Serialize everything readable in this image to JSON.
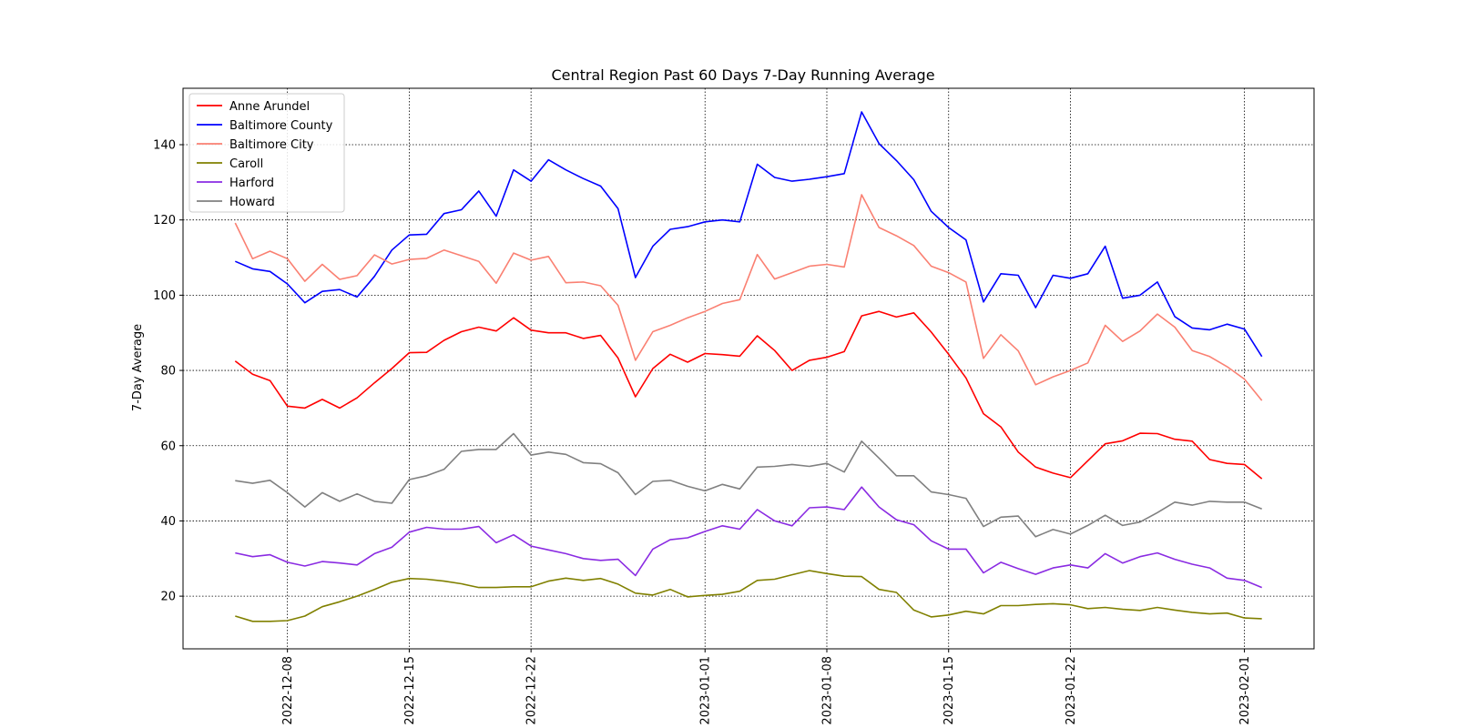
{
  "chart_data": {
    "type": "line",
    "title": "Central Region Past 60 Days 7-Day Running Average",
    "xlabel": "",
    "ylabel": "7-Day Average",
    "grid": true,
    "legend_position": "top-left",
    "x_start": "2022-12-05",
    "x_step_days": 1,
    "x_ticks": [
      "2022-12-08",
      "2022-12-15",
      "2022-12-22",
      "2023-01-01",
      "2023-01-08",
      "2023-01-15",
      "2023-01-22",
      "2023-02-01"
    ],
    "xlim": [
      "2022-12-02",
      "2023-02-05"
    ],
    "y_ticks": [
      20,
      40,
      60,
      80,
      100,
      120,
      140
    ],
    "ylim": [
      6,
      155
    ],
    "series": [
      {
        "name": "Anne Arundel",
        "color": "#ff0000",
        "values": [
          82.5,
          79,
          77.3,
          70.5,
          70,
          72.3,
          70,
          72.7,
          76.7,
          80.5,
          84.7,
          84.8,
          88,
          90.3,
          91.5,
          90.5,
          94,
          90.7,
          90,
          90,
          88.5,
          89.3,
          83.3,
          73,
          80.5,
          84.3,
          82.2,
          84.5,
          84.2,
          83.8,
          89.2,
          85.3,
          80,
          82.7,
          83.5,
          85,
          94.5,
          95.7,
          94.2,
          95.3,
          90.2,
          84.3,
          78,
          68.5,
          65,
          58.3,
          54.3,
          52.7,
          51.5,
          56,
          60.5,
          61.3,
          63.3,
          63.2,
          61.7,
          61.2,
          56.3,
          55.3,
          55,
          51.2
        ]
      },
      {
        "name": "Baltimore County",
        "color": "#0000ff",
        "values": [
          109,
          107,
          106.3,
          103,
          98,
          101,
          101.5,
          99.5,
          105,
          112,
          116,
          116.2,
          121.7,
          122.7,
          127.7,
          121,
          133.3,
          130.3,
          136,
          133.3,
          131,
          129,
          123,
          104.7,
          113,
          117.5,
          118.2,
          119.5,
          120,
          119.5,
          134.8,
          131.3,
          130.3,
          130.8,
          131.5,
          132.3,
          148.7,
          140.3,
          135.8,
          130.7,
          122.3,
          118,
          114.7,
          98.2,
          105.7,
          105.3,
          96.7,
          105.3,
          104.5,
          105.7,
          113,
          99.2,
          100,
          103.5,
          94.3,
          91.3,
          90.8,
          92.3,
          91,
          83.7
        ]
      },
      {
        "name": "Baltimore City",
        "color": "#fa8072",
        "values": [
          119.2,
          109.7,
          111.7,
          109.7,
          103.7,
          108.2,
          104.2,
          105.2,
          110.7,
          108.3,
          109.5,
          109.8,
          112,
          110.5,
          109,
          103.2,
          111.2,
          109.3,
          110.3,
          103.3,
          103.5,
          102.5,
          97.3,
          82.7,
          90.3,
          92,
          94,
          95.7,
          97.8,
          98.8,
          110.8,
          104.3,
          106,
          107.7,
          108.2,
          107.5,
          126.7,
          118,
          115.8,
          113.2,
          107.7,
          106,
          103.5,
          83.2,
          89.5,
          85.2,
          76.2,
          78.3,
          80,
          82,
          92,
          87.7,
          90.5,
          95,
          91.5,
          85.3,
          83.7,
          81,
          77.7,
          72
        ]
      },
      {
        "name": "Caroll",
        "color": "#808000",
        "values": [
          14.7,
          13.3,
          13.3,
          13.5,
          14.7,
          17.2,
          18.5,
          20,
          21.8,
          23.7,
          24.7,
          24.5,
          24,
          23.3,
          22.3,
          22.3,
          22.5,
          22.5,
          24,
          24.8,
          24.2,
          24.7,
          23.2,
          20.8,
          20.3,
          21.8,
          19.8,
          20.2,
          20.5,
          21.3,
          24.2,
          24.5,
          25.7,
          26.8,
          26,
          25.3,
          25.2,
          21.8,
          21,
          16.3,
          14.5,
          15,
          16,
          15.3,
          17.5,
          17.5,
          17.8,
          18,
          17.7,
          16.7,
          17,
          16.5,
          16.2,
          17,
          16.3,
          15.7,
          15.3,
          15.5,
          14.2,
          14
        ]
      },
      {
        "name": "Harford",
        "color": "#8a2be2",
        "values": [
          31.5,
          30.5,
          31,
          29,
          28,
          29.2,
          28.8,
          28.3,
          31.3,
          33,
          37,
          38.3,
          37.8,
          37.8,
          38.5,
          34.2,
          36.3,
          33.3,
          32.3,
          31.3,
          30,
          29.5,
          29.8,
          25.5,
          32.5,
          35,
          35.5,
          37.2,
          38.7,
          37.8,
          43,
          40,
          38.7,
          43.5,
          43.7,
          43,
          49,
          43.7,
          40.3,
          39,
          34.7,
          32.5,
          32.5,
          26.2,
          29,
          27.3,
          25.8,
          27.5,
          28.3,
          27.5,
          31.3,
          28.8,
          30.5,
          31.5,
          29.8,
          28.5,
          27.5,
          24.8,
          24.2,
          22.3
        ]
      },
      {
        "name": "Howard",
        "color": "#808080",
        "values": [
          50.7,
          50,
          50.8,
          47.5,
          43.7,
          47.5,
          45.2,
          47.2,
          45.2,
          44.7,
          51,
          52,
          53.7,
          58.5,
          59,
          59,
          63.2,
          57.5,
          58.3,
          57.7,
          55.5,
          55.2,
          52.8,
          47,
          50.5,
          50.8,
          49.2,
          48,
          49.7,
          48.5,
          54.3,
          54.5,
          55,
          54.5,
          55.3,
          53,
          61.2,
          56.7,
          52,
          52,
          47.7,
          47,
          46,
          38.5,
          41,
          41.3,
          35.8,
          37.7,
          36.5,
          38.8,
          41.5,
          38.8,
          39.7,
          42.2,
          45,
          44.2,
          45.2,
          45,
          45,
          43.2
        ]
      }
    ]
  }
}
